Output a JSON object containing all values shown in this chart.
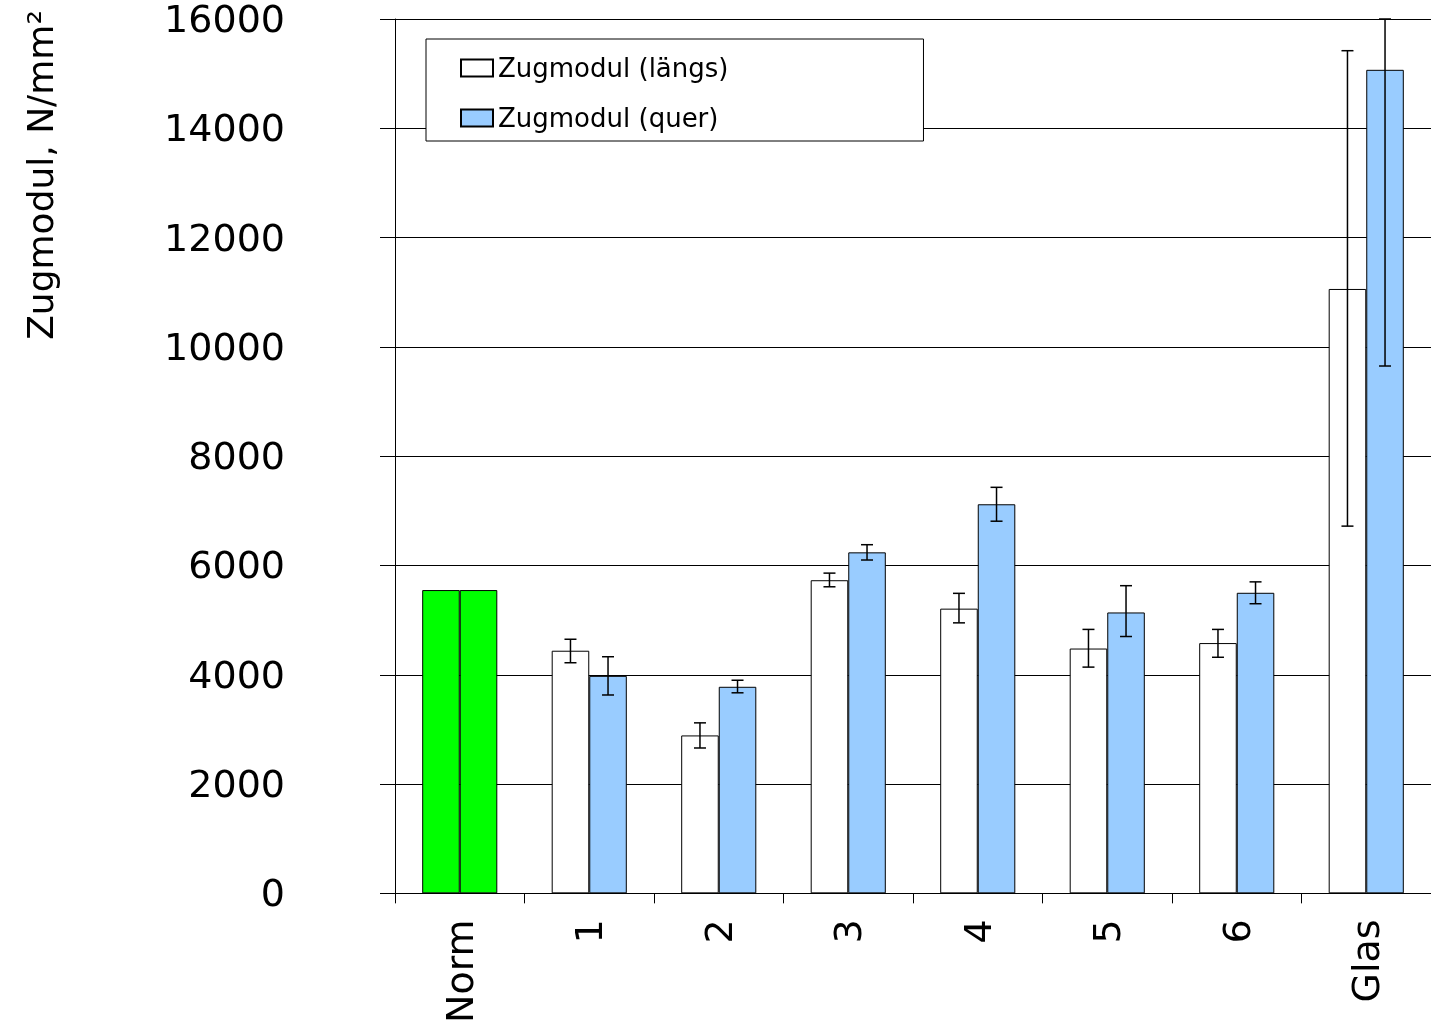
{
  "chart_data": {
    "type": "bar",
    "ylabel": "Zugmodul, N/mm²",
    "categories": [
      "Norm",
      "1",
      "2",
      "3",
      "4",
      "5",
      "6",
      "Glas"
    ],
    "series": [
      {
        "name": "Zugmodul (längs)",
        "color": "#ffffff",
        "colors": [
          "#00ff00",
          "#ffffff",
          "#ffffff",
          "#ffffff",
          "#ffffff",
          "#ffffff",
          "#ffffff",
          "#ffffff"
        ],
        "values": [
          5550,
          4440,
          2890,
          5730,
          5210,
          4480,
          4580,
          11060
        ],
        "errors": [
          null,
          [
            4220,
            4650
          ],
          [
            2660,
            3120
          ],
          [
            5610,
            5860
          ],
          [
            4950,
            5490
          ],
          [
            4140,
            4830
          ],
          [
            4320,
            4830
          ],
          [
            6720,
            15420
          ]
        ]
      },
      {
        "name": "Zugmodul (quer)",
        "color": "#99ccff",
        "colors": [
          "#00ff00",
          "#99ccff",
          "#99ccff",
          "#99ccff",
          "#99ccff",
          "#99ccff",
          "#99ccff",
          "#99ccff"
        ],
        "values": [
          5550,
          3980,
          3780,
          6240,
          7120,
          5140,
          5500,
          15070
        ],
        "errors": [
          null,
          [
            3630,
            4330
          ],
          [
            3670,
            3900
          ],
          [
            6100,
            6380
          ],
          [
            6810,
            7430
          ],
          [
            4700,
            5630
          ],
          [
            5300,
            5700
          ],
          [
            9650,
            16000
          ]
        ]
      }
    ],
    "ylim": [
      0,
      16000
    ],
    "yticks": [
      0,
      2000,
      4000,
      6000,
      8000,
      10000,
      12000,
      14000,
      16000
    ],
    "grid": "y",
    "legend": "top left"
  }
}
